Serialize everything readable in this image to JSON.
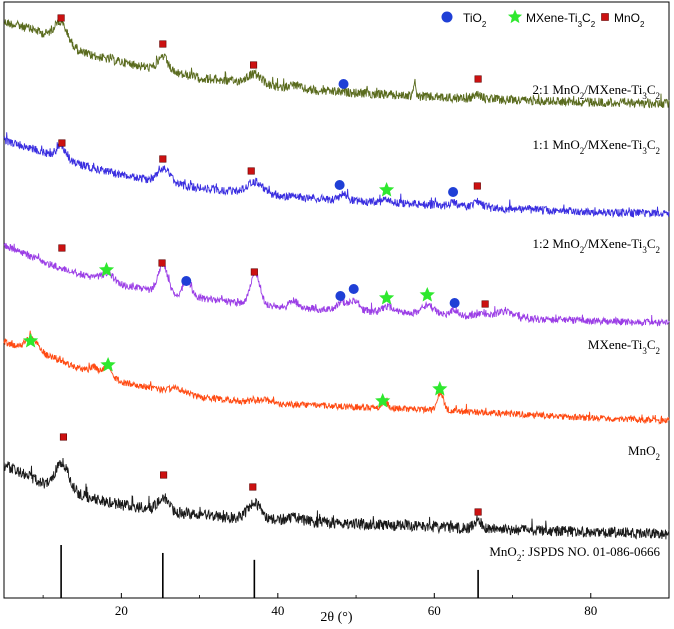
{
  "chart_data": {
    "type": "line",
    "xlabel": "2θ (°)",
    "xlim": [
      5,
      90
    ],
    "xticks": [
      20,
      40,
      60,
      80
    ],
    "legend": {
      "placement": "top-right",
      "items": [
        {
          "key": "tio2",
          "label": "TiO2",
          "marker": "circle",
          "color": "#1f3fd6"
        },
        {
          "key": "mxene",
          "label": "MXene-Ti3C2",
          "marker": "star",
          "color": "#2ee82e"
        },
        {
          "key": "mno2",
          "label": "MnO2",
          "marker": "square",
          "color": "#cc1111"
        }
      ]
    },
    "series": [
      {
        "name": "2:1 MnO2/MXene-Ti3C2",
        "label_parts": [
          "2:1 MnO",
          "2",
          "/MXene-Ti",
          "3",
          "C",
          "2"
        ],
        "color": "#5a6b1e",
        "noise": 4.5,
        "baseline": [
          [
            5,
            22
          ],
          [
            9,
            30
          ],
          [
            11,
            38
          ],
          [
            13,
            48
          ],
          [
            16,
            55
          ],
          [
            20,
            62
          ],
          [
            25,
            70
          ],
          [
            30,
            78
          ],
          [
            35,
            82
          ],
          [
            40,
            88
          ],
          [
            50,
            93
          ],
          [
            60,
            97
          ],
          [
            70,
            100
          ],
          [
            80,
            102
          ],
          [
            90,
            104
          ]
        ],
        "peaks": [
          [
            12.3,
            22,
            0.9
          ],
          [
            25.3,
            14,
            0.6
          ],
          [
            37.0,
            10,
            1.0
          ],
          [
            42.0,
            4,
            0.8
          ],
          [
            57.5,
            14,
            0.12
          ],
          [
            65.5,
            4,
            0.5
          ]
        ],
        "markers": [
          {
            "type": "square",
            "x": 12.3,
            "y": 18
          },
          {
            "type": "square",
            "x": 25.3,
            "y": 44
          },
          {
            "type": "square",
            "x": 36.9,
            "y": 65
          },
          {
            "type": "circle",
            "x": 48.4,
            "y": 84
          },
          {
            "type": "square",
            "x": 65.6,
            "y": 79
          }
        ]
      },
      {
        "name": "1:1 MnO2/MXene-Ti3C2",
        "label_parts": [
          "1:1 MnO",
          "2",
          "/MXene-Ti",
          "3",
          "C",
          "2"
        ],
        "color": "#3a2ee0",
        "noise": 4.0,
        "baseline": [
          [
            5,
            140
          ],
          [
            10,
            152
          ],
          [
            15,
            165
          ],
          [
            20,
            175
          ],
          [
            25,
            182
          ],
          [
            30,
            188
          ],
          [
            35,
            192
          ],
          [
            40,
            196
          ],
          [
            50,
            201
          ],
          [
            60,
            205
          ],
          [
            70,
            209
          ],
          [
            80,
            212
          ],
          [
            90,
            214
          ]
        ],
        "peaks": [
          [
            12.3,
            12,
            0.6
          ],
          [
            25.4,
            14,
            0.8
          ],
          [
            37.1,
            12,
            1.0
          ],
          [
            48.4,
            6,
            0.5
          ],
          [
            54.0,
            3,
            0.5
          ],
          [
            62.5,
            3,
            0.5
          ],
          [
            65.6,
            6,
            0.5
          ]
        ],
        "markers": [
          {
            "type": "square",
            "x": 12.4,
            "y": 143
          },
          {
            "type": "square",
            "x": 25.3,
            "y": 159
          },
          {
            "type": "square",
            "x": 36.6,
            "y": 171
          },
          {
            "type": "circle",
            "x": 47.9,
            "y": 185
          },
          {
            "type": "star",
            "x": 53.9,
            "y": 190
          },
          {
            "type": "circle",
            "x": 62.4,
            "y": 192
          },
          {
            "type": "square",
            "x": 65.5,
            "y": 186
          }
        ]
      },
      {
        "name": "1:2 MnO2/MXene-Ti3C2",
        "label_parts": [
          "1:2 MnO",
          "2",
          "/MXene-Ti",
          "3",
          "C",
          "2"
        ],
        "color": "#9b3ee6",
        "noise": 3.5,
        "baseline": [
          [
            5,
            245
          ],
          [
            10,
            262
          ],
          [
            15,
            275
          ],
          [
            20,
            285
          ],
          [
            25,
            292
          ],
          [
            30,
            298
          ],
          [
            35,
            303
          ],
          [
            40,
            307
          ],
          [
            50,
            311
          ],
          [
            60,
            314
          ],
          [
            70,
            318
          ],
          [
            80,
            321
          ],
          [
            90,
            323
          ]
        ],
        "peaks": [
          [
            18.3,
            8,
            0.8
          ],
          [
            25.3,
            28,
            0.6
          ],
          [
            28.4,
            16,
            0.5
          ],
          [
            37.1,
            32,
            0.6
          ],
          [
            42.0,
            8,
            0.5
          ],
          [
            48.2,
            8,
            0.6
          ],
          [
            49.8,
            10,
            0.6
          ],
          [
            54.0,
            6,
            0.6
          ],
          [
            59.2,
            8,
            0.8
          ],
          [
            62.6,
            5,
            0.5
          ],
          [
            66.2,
            4,
            0.5
          ],
          [
            69.0,
            6,
            1.0
          ]
        ],
        "markers": [
          {
            "type": "square",
            "x": 12.4,
            "y": 248
          },
          {
            "type": "star",
            "x": 18.1,
            "y": 270
          },
          {
            "type": "square",
            "x": 25.2,
            "y": 263
          },
          {
            "type": "circle",
            "x": 28.3,
            "y": 281
          },
          {
            "type": "square",
            "x": 37.0,
            "y": 272
          },
          {
            "type": "circle",
            "x": 48.0,
            "y": 296
          },
          {
            "type": "circle",
            "x": 49.7,
            "y": 289
          },
          {
            "type": "star",
            "x": 53.9,
            "y": 298
          },
          {
            "type": "star",
            "x": 59.1,
            "y": 295
          },
          {
            "type": "circle",
            "x": 62.6,
            "y": 303
          },
          {
            "type": "square",
            "x": 66.5,
            "y": 304
          }
        ]
      },
      {
        "name": "MXene-Ti3C2",
        "label_parts": [
          "MXene-Ti",
          "3",
          "C",
          "2"
        ],
        "color": "#ff4a12",
        "noise": 3.2,
        "baseline": [
          [
            5,
            342
          ],
          [
            8,
            350
          ],
          [
            12,
            360
          ],
          [
            16,
            372
          ],
          [
            20,
            382
          ],
          [
            25,
            390
          ],
          [
            30,
            397
          ],
          [
            35,
            401
          ],
          [
            40,
            404
          ],
          [
            50,
            407
          ],
          [
            60,
            410
          ],
          [
            70,
            414
          ],
          [
            80,
            418
          ],
          [
            90,
            421
          ]
        ],
        "peaks": [
          [
            8.6,
            14,
            0.8
          ],
          [
            16.5,
            6,
            0.5
          ],
          [
            18.2,
            10,
            0.6
          ],
          [
            27.0,
            4,
            1.0
          ],
          [
            38.0,
            3,
            1.0
          ],
          [
            53.6,
            6,
            0.4
          ],
          [
            60.8,
            18,
            0.35
          ]
        ],
        "markers": [
          {
            "type": "star",
            "x": 8.4,
            "y": 341
          },
          {
            "type": "star",
            "x": 18.3,
            "y": 365
          },
          {
            "type": "star",
            "x": 53.4,
            "y": 401
          },
          {
            "type": "star",
            "x": 60.7,
            "y": 389
          }
        ]
      },
      {
        "name": "MnO2",
        "label_parts": [
          "MnO",
          "2"
        ],
        "color": "#1a1a1a",
        "noise": 5.5,
        "baseline": [
          [
            5,
            465
          ],
          [
            8,
            475
          ],
          [
            11,
            488
          ],
          [
            15,
            496
          ],
          [
            20,
            505
          ],
          [
            25,
            510
          ],
          [
            30,
            515
          ],
          [
            35,
            518
          ],
          [
            40,
            520
          ],
          [
            50,
            524
          ],
          [
            60,
            527
          ],
          [
            70,
            530
          ],
          [
            80,
            532
          ],
          [
            90,
            534
          ]
        ],
        "peaks": [
          [
            12.4,
            28,
            0.9
          ],
          [
            25.3,
            14,
            0.6
          ],
          [
            37.0,
            16,
            0.8
          ],
          [
            42.0,
            4,
            0.8
          ],
          [
            65.6,
            8,
            0.5
          ]
        ],
        "markers": [
          {
            "type": "square",
            "x": 12.6,
            "y": 437
          },
          {
            "type": "square",
            "x": 25.4,
            "y": 475
          },
          {
            "type": "square",
            "x": 36.8,
            "y": 487
          },
          {
            "type": "square",
            "x": 65.6,
            "y": 512
          }
        ]
      }
    ],
    "reference": {
      "label_parts": [
        "MnO",
        "2",
        ": JSPDS NO. 01-086-0666"
      ],
      "name": "MnO2: JSPDS NO. 01-086-0666",
      "sticks": [
        [
          12.3,
          1.0
        ],
        [
          25.3,
          0.85
        ],
        [
          37.0,
          0.72
        ],
        [
          65.6,
          0.53
        ]
      ],
      "markers": []
    },
    "label_positions_note": "labels right-aligned near each trace"
  },
  "text": {
    "xlabel": "2θ (°)",
    "legend_tio2": "TiO2",
    "legend_mxene": "MXene-Ti3C2",
    "legend_mno2": "MnO2"
  }
}
